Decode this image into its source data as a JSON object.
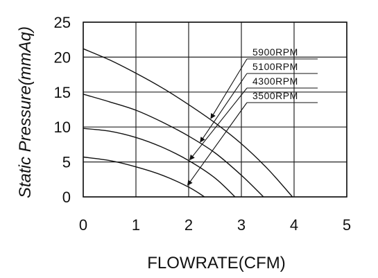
{
  "chart_data": {
    "type": "line",
    "title": "",
    "xlabel": "FLOWRATE(CFM)",
    "ylabel": "Static Pressure(mmAq)",
    "xlim": [
      0,
      5
    ],
    "ylim": [
      0,
      25
    ],
    "x_ticks": [
      "0",
      "1",
      "2",
      "3",
      "4",
      "5"
    ],
    "y_ticks": [
      "0",
      "5",
      "10",
      "15",
      "20",
      "25"
    ],
    "grid": true,
    "legend_placement": "top-right",
    "series": [
      {
        "name": "5900RPM",
        "points": [
          [
            0,
            21.2
          ],
          [
            0.5,
            19.6
          ],
          [
            1.0,
            17.7
          ],
          [
            1.5,
            15.6
          ],
          [
            2.0,
            13.2
          ],
          [
            2.5,
            10.6
          ],
          [
            3.0,
            7.6
          ],
          [
            3.5,
            4.0
          ],
          [
            3.97,
            0
          ]
        ]
      },
      {
        "name": "5100RPM",
        "points": [
          [
            0,
            14.7
          ],
          [
            0.5,
            13.6
          ],
          [
            1.0,
            12.4
          ],
          [
            1.5,
            10.7
          ],
          [
            2.0,
            8.7
          ],
          [
            2.5,
            6.3
          ],
          [
            3.0,
            3.1
          ],
          [
            3.42,
            0
          ]
        ]
      },
      {
        "name": "4300RPM",
        "points": [
          [
            0,
            9.8
          ],
          [
            0.5,
            9.4
          ],
          [
            1.0,
            8.5
          ],
          [
            1.5,
            7.1
          ],
          [
            2.0,
            5.2
          ],
          [
            2.5,
            2.7
          ],
          [
            2.88,
            0
          ]
        ]
      },
      {
        "name": "3500RPM",
        "points": [
          [
            0,
            5.7
          ],
          [
            0.5,
            5.2
          ],
          [
            1.0,
            4.3
          ],
          [
            1.5,
            3.1
          ],
          [
            2.0,
            1.4
          ],
          [
            2.3,
            0
          ]
        ]
      }
    ]
  }
}
